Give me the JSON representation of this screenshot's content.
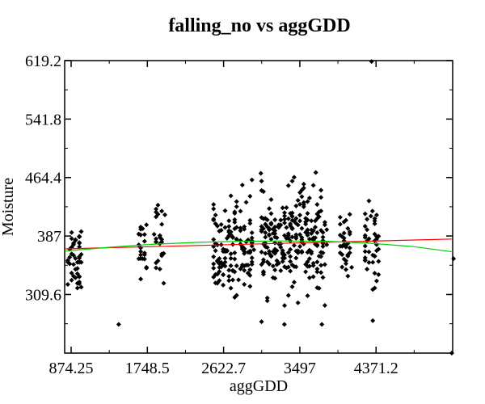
{
  "chart_data": {
    "type": "scatter",
    "title": "falling_no vs aggGDD",
    "xlabel": "aggGDD",
    "ylabel": "Moisture",
    "xlim": [
      800,
      5250
    ],
    "ylim": [
      232,
      619.2
    ],
    "x_tick_values": [
      874.25,
      1748.5,
      2622.7,
      3497,
      4371.2
    ],
    "x_tick_labels": [
      "874.25",
      "1748.5",
      "2622.7",
      "3497",
      "4371.2"
    ],
    "y_tick_values": [
      309.6,
      387,
      464.4,
      541.8,
      619.2
    ],
    "y_tick_labels": [
      "309.6",
      "387",
      "464.4",
      "541.8",
      "619.2"
    ],
    "point_color": "#000000",
    "series": [
      {
        "type": "scatter",
        "clusters": [
          {
            "x_range": [
              840,
              990
            ],
            "n": 45,
            "y_mean": 362,
            "y_sd": 24
          },
          {
            "x_range": [
              1630,
              1760
            ],
            "n": 22,
            "y_mean": 371,
            "y_sd": 17
          },
          {
            "x_range": [
              1810,
              1930
            ],
            "n": 24,
            "y_mean": 381,
            "y_sd": 25
          },
          {
            "x_range": [
              2500,
              2620
            ],
            "n": 40,
            "y_mean": 363,
            "y_sd": 31
          },
          {
            "x_range": [
              2640,
              2780
            ],
            "n": 48,
            "y_mean": 375,
            "y_sd": 30
          },
          {
            "x_range": [
              2800,
              2960
            ],
            "n": 50,
            "y_mean": 375,
            "y_sd": 30
          },
          {
            "x_range": [
              3050,
              3200
            ],
            "n": 55,
            "y_mean": 378,
            "y_sd": 30
          },
          {
            "x_range": [
              3200,
              3400
            ],
            "n": 60,
            "y_mean": 376,
            "y_sd": 28
          },
          {
            "x_range": [
              3400,
              3620
            ],
            "n": 72,
            "y_mean": 383,
            "y_sd": 35
          },
          {
            "x_range": [
              3620,
              3800
            ],
            "n": 55,
            "y_mean": 377,
            "y_sd": 32
          },
          {
            "x_range": [
              3950,
              4100
            ],
            "n": 35,
            "y_mean": 377,
            "y_sd": 28
          },
          {
            "x_range": [
              4230,
              4400
            ],
            "n": 42,
            "y_mean": 366,
            "y_sd": 32
          }
        ],
        "notable_points": [
          [
            3050,
            470
          ],
          [
            3680,
            471
          ],
          [
            1420,
            270
          ],
          [
            4320,
            618
          ],
          [
            3320,
            270
          ],
          [
            3750,
            270
          ],
          [
            5260,
            357
          ],
          [
            5240,
            232
          ],
          [
            1950,
            415
          ],
          [
            4330,
            420
          ]
        ]
      },
      {
        "type": "line",
        "fit": "linear",
        "color": "#ff0000",
        "x": [
          800,
          5250
        ],
        "y": [
          370,
          383
        ]
      },
      {
        "type": "line",
        "fit": "quadratic",
        "color": "#00d000",
        "x": [
          800,
          1300,
          1800,
          2300,
          2800,
          3300,
          3800,
          4300,
          4800,
          5250
        ],
        "y": [
          367,
          372,
          376,
          378.5,
          380,
          380.5,
          380,
          377.5,
          373,
          366
        ]
      }
    ]
  }
}
